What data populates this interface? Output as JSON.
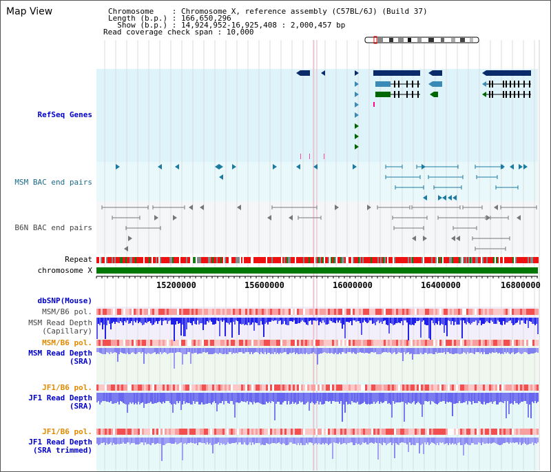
{
  "header": {
    "title": "Map View",
    "lines": [
      "Chromosome    : Chromosome X, reference assembly (C57BL/6J) (Build 37)",
      "Length (b.p.) : 166,650,296",
      "  Show (b.p.) : 14,924,952-16,925,408 : 2,000,457 bp",
      "Read coverage check span : 10,000"
    ]
  },
  "tracks": {
    "refseq": "RefSeq Genes",
    "msm_bac": "MSM BAC end pairs",
    "b6n_bac": "B6N BAC end pairs",
    "repeat": "Repeat",
    "chromosome": "chromosome X",
    "dbsnp": "dbSNP(Mouse)",
    "msm_b6_pol_1": "MSM/B6 pol.",
    "msm_read_depth_cap_1": "MSM Read Depth",
    "msm_read_depth_cap_2": "(Capillary)",
    "msm_b6_pol_2": "MSM/B6 pol.",
    "msm_read_depth_sra_1": "MSM Read Depth",
    "msm_read_depth_sra_2": "(SRA)",
    "jf1_b6_pol_1": "JF1/B6 pol.",
    "jf1_read_depth_sra_1": "JF1 Read Depth",
    "jf1_read_depth_sra_2": "(SRA)",
    "jf1_b6_pol_2": "JF1/B6 pol.",
    "jf1_read_depth_trim_1": "JF1 Read Depth",
    "jf1_read_depth_trim_2": "(SRA trimmed)"
  },
  "axis": {
    "ticks": [
      "15200000",
      "15600000",
      "16000000",
      "16400000",
      "16800000"
    ]
  },
  "colors": {
    "refseq_bg": "#dff3fb",
    "bac_bg": "#e8f8fb",
    "navy": "#0a2a6a",
    "steel": "#3a8ab8",
    "green": "#006600",
    "repeat_red": "#ee1111",
    "chrom_green": "#007700",
    "depth_blue": "#2222ee",
    "depth_light": "#7777ee"
  }
}
